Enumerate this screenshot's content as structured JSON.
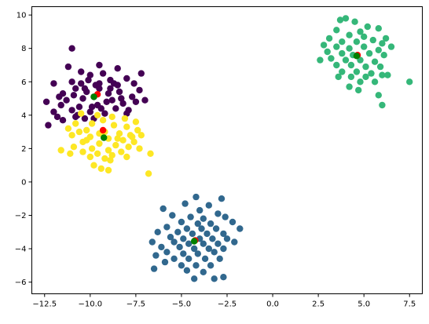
{
  "chart_data": {
    "type": "scatter",
    "title": "",
    "xlabel": "",
    "ylabel": "",
    "xlim": [
      -13.2,
      8.2
    ],
    "ylim": [
      -6.7,
      10.5
    ],
    "xticks": [
      -12.5,
      -10.0,
      -7.5,
      -5.0,
      -2.5,
      0.0,
      2.5,
      5.0,
      7.5
    ],
    "xtick_labels": [
      "−12.5",
      "−10.0",
      "−7.5",
      "−5.0",
      "−2.5",
      "0.0",
      "2.5",
      "5.0",
      "7.5"
    ],
    "yticks": [
      -6,
      -4,
      -2,
      0,
      2,
      4,
      6,
      8,
      10
    ],
    "ytick_labels": [
      "−6",
      "−4",
      "−2",
      "0",
      "2",
      "4",
      "6",
      "8",
      "10"
    ],
    "grid": false,
    "legend": "none",
    "series": [
      {
        "color": "#440154",
        "points": [
          [
            -11.0,
            8.0
          ],
          [
            -9.5,
            7.0
          ],
          [
            -8.5,
            6.8
          ],
          [
            -7.2,
            6.5
          ],
          [
            -10.5,
            6.6
          ],
          [
            -11.2,
            6.9
          ],
          [
            -8.0,
            6.2
          ],
          [
            -10.0,
            6.4
          ],
          [
            -9.3,
            6.5
          ],
          [
            -11.0,
            6.0
          ],
          [
            -12.0,
            5.9
          ],
          [
            -10.5,
            5.9
          ],
          [
            -9.7,
            5.8
          ],
          [
            -8.7,
            5.9
          ],
          [
            -7.6,
            5.9
          ],
          [
            -7.3,
            5.5
          ],
          [
            -10.8,
            5.6
          ],
          [
            -9.5,
            5.6
          ],
          [
            -8.9,
            5.6
          ],
          [
            -11.5,
            5.3
          ],
          [
            -10.2,
            5.4
          ],
          [
            -9.0,
            5.3
          ],
          [
            -8.4,
            5.4
          ],
          [
            -7.7,
            5.1
          ],
          [
            -12.4,
            4.8
          ],
          [
            -11.3,
            4.9
          ],
          [
            -10.4,
            5.0
          ],
          [
            -9.8,
            5.1
          ],
          [
            -8.8,
            4.9
          ],
          [
            -8.2,
            4.7
          ],
          [
            -7.5,
            4.8
          ],
          [
            -11.6,
            4.6
          ],
          [
            -10.6,
            4.5
          ],
          [
            -9.6,
            4.6
          ],
          [
            -8.6,
            4.4
          ],
          [
            -7.9,
            4.3
          ],
          [
            -12.0,
            4.2
          ],
          [
            -11.0,
            4.3
          ],
          [
            -10.0,
            4.2
          ],
          [
            -9.2,
            4.1
          ],
          [
            -8.0,
            4.1
          ],
          [
            -11.8,
            3.9
          ],
          [
            -10.8,
            3.9
          ],
          [
            -9.8,
            3.8
          ],
          [
            -12.3,
            3.4
          ],
          [
            -11.5,
            3.7
          ],
          [
            -10.3,
            3.8
          ],
          [
            -9.5,
            5.9
          ],
          [
            -10.1,
            6.1
          ],
          [
            -8.3,
            5.0
          ],
          [
            -9.9,
            4.5
          ],
          [
            -10.9,
            5.2
          ],
          [
            -9.1,
            4.8
          ],
          [
            -8.5,
            5.8
          ],
          [
            -7.0,
            4.9
          ],
          [
            -11.7,
            5.1
          ],
          [
            -10.7,
            4.0
          ],
          [
            -9.4,
            4.4
          ],
          [
            -8.9,
            6.1
          ],
          [
            -10.3,
            5.6
          ]
        ]
      },
      {
        "color": "#fde725",
        "points": [
          [
            -10.5,
            4.1
          ],
          [
            -9.6,
            4.0
          ],
          [
            -8.8,
            3.9
          ],
          [
            -8.1,
            3.8
          ],
          [
            -7.5,
            3.6
          ],
          [
            -10.8,
            3.5
          ],
          [
            -9.9,
            3.5
          ],
          [
            -8.7,
            3.4
          ],
          [
            -8.0,
            3.3
          ],
          [
            -7.4,
            3.1
          ],
          [
            -11.2,
            3.2
          ],
          [
            -10.2,
            3.1
          ],
          [
            -9.2,
            3.0
          ],
          [
            -8.4,
            2.9
          ],
          [
            -7.8,
            2.8
          ],
          [
            -11.0,
            2.8
          ],
          [
            -10.0,
            2.7
          ],
          [
            -9.0,
            2.6
          ],
          [
            -8.2,
            2.5
          ],
          [
            -7.6,
            2.4
          ],
          [
            -10.4,
            2.4
          ],
          [
            -9.5,
            2.3
          ],
          [
            -8.6,
            2.2
          ],
          [
            -7.9,
            2.1
          ],
          [
            -10.9,
            2.1
          ],
          [
            -9.9,
            2.0
          ],
          [
            -9.0,
            1.9
          ],
          [
            -8.3,
            1.8
          ],
          [
            -7.3,
            2.0
          ],
          [
            -11.6,
            1.9
          ],
          [
            -10.4,
            1.8
          ],
          [
            -9.6,
            1.7
          ],
          [
            -8.8,
            1.6
          ],
          [
            -8.0,
            1.5
          ],
          [
            -11.1,
            1.7
          ],
          [
            -10.0,
            1.5
          ],
          [
            -9.2,
            1.4
          ],
          [
            -9.8,
            1.0
          ],
          [
            -9.4,
            0.8
          ],
          [
            -9.0,
            0.7
          ],
          [
            -6.7,
            1.7
          ],
          [
            -6.8,
            0.5
          ],
          [
            -7.2,
            2.8
          ],
          [
            -10.6,
            3.0
          ],
          [
            -9.5,
            2.9
          ],
          [
            -8.5,
            2.6
          ],
          [
            -9.3,
            3.7
          ],
          [
            -10.2,
            2.5
          ],
          [
            -8.9,
            1.3
          ],
          [
            -7.7,
            2.7
          ]
        ]
      },
      {
        "color": "#31688e",
        "points": [
          [
            -4.2,
            -0.9
          ],
          [
            -2.8,
            -1.0
          ],
          [
            -4.8,
            -1.3
          ],
          [
            -3.5,
            -1.4
          ],
          [
            -6.0,
            -1.6
          ],
          [
            -4.0,
            -1.7
          ],
          [
            -3.0,
            -1.9
          ],
          [
            -5.5,
            -2.0
          ],
          [
            -4.5,
            -2.1
          ],
          [
            -3.8,
            -2.2
          ],
          [
            -2.6,
            -2.1
          ],
          [
            -5.0,
            -2.4
          ],
          [
            -4.1,
            -2.5
          ],
          [
            -3.4,
            -2.5
          ],
          [
            -2.2,
            -2.4
          ],
          [
            -5.8,
            -2.7
          ],
          [
            -4.7,
            -2.8
          ],
          [
            -3.9,
            -2.8
          ],
          [
            -3.1,
            -2.8
          ],
          [
            -1.8,
            -2.8
          ],
          [
            -6.3,
            -3.0
          ],
          [
            -5.2,
            -3.0
          ],
          [
            -4.4,
            -3.1
          ],
          [
            -3.6,
            -3.1
          ],
          [
            -2.7,
            -3.1
          ],
          [
            -5.6,
            -3.3
          ],
          [
            -4.9,
            -3.4
          ],
          [
            -4.0,
            -3.4
          ],
          [
            -3.3,
            -3.4
          ],
          [
            -2.5,
            -3.4
          ],
          [
            -6.6,
            -3.6
          ],
          [
            -5.4,
            -3.6
          ],
          [
            -4.6,
            -3.7
          ],
          [
            -3.8,
            -3.7
          ],
          [
            -3.0,
            -3.7
          ],
          [
            -2.1,
            -3.6
          ],
          [
            -6.1,
            -3.9
          ],
          [
            -5.1,
            -3.9
          ],
          [
            -4.3,
            -4.0
          ],
          [
            -3.5,
            -4.0
          ],
          [
            -2.7,
            -4.0
          ],
          [
            -5.8,
            -4.2
          ],
          [
            -4.9,
            -4.3
          ],
          [
            -4.1,
            -4.3
          ],
          [
            -3.2,
            -4.2
          ],
          [
            -6.4,
            -4.4
          ],
          [
            -5.4,
            -4.6
          ],
          [
            -4.6,
            -4.6
          ],
          [
            -3.7,
            -4.6
          ],
          [
            -2.9,
            -4.6
          ],
          [
            -5.9,
            -4.8
          ],
          [
            -5.0,
            -5.0
          ],
          [
            -4.2,
            -5.0
          ],
          [
            -3.4,
            -5.0
          ],
          [
            -6.5,
            -5.2
          ],
          [
            -4.7,
            -5.3
          ],
          [
            -3.8,
            -5.4
          ],
          [
            -4.3,
            -5.8
          ],
          [
            -3.2,
            -5.8
          ],
          [
            -2.7,
            -5.7
          ]
        ]
      },
      {
        "color": "#35b779",
        "points": [
          [
            3.7,
            9.7
          ],
          [
            4.0,
            9.8
          ],
          [
            4.5,
            9.6
          ],
          [
            5.2,
            9.3
          ],
          [
            3.5,
            9.1
          ],
          [
            4.8,
            9.0
          ],
          [
            5.8,
            9.2
          ],
          [
            4.2,
            8.8
          ],
          [
            5.0,
            8.7
          ],
          [
            6.2,
            8.6
          ],
          [
            3.1,
            8.6
          ],
          [
            3.8,
            8.4
          ],
          [
            4.6,
            8.4
          ],
          [
            5.5,
            8.5
          ],
          [
            6.0,
            8.3
          ],
          [
            2.8,
            8.2
          ],
          [
            3.5,
            8.1
          ],
          [
            4.2,
            8.0
          ],
          [
            5.0,
            8.1
          ],
          [
            5.8,
            7.9
          ],
          [
            6.5,
            8.1
          ],
          [
            3.0,
            7.8
          ],
          [
            3.8,
            7.7
          ],
          [
            4.4,
            7.6
          ],
          [
            5.3,
            7.7
          ],
          [
            6.1,
            7.6
          ],
          [
            2.6,
            7.3
          ],
          [
            3.2,
            7.4
          ],
          [
            4.0,
            7.3
          ],
          [
            4.8,
            7.3
          ],
          [
            5.6,
            7.2
          ],
          [
            3.5,
            7.0
          ],
          [
            4.3,
            7.0
          ],
          [
            5.1,
            6.9
          ],
          [
            5.9,
            6.9
          ],
          [
            3.8,
            6.6
          ],
          [
            4.6,
            6.6
          ],
          [
            5.4,
            6.5
          ],
          [
            6.0,
            6.4
          ],
          [
            3.6,
            6.3
          ],
          [
            4.3,
            6.3
          ],
          [
            5.1,
            6.3
          ],
          [
            4.8,
            6.0
          ],
          [
            5.6,
            6.0
          ],
          [
            4.2,
            5.7
          ],
          [
            4.7,
            5.5
          ],
          [
            5.8,
            5.2
          ],
          [
            6.0,
            4.6
          ],
          [
            7.5,
            6.0
          ],
          [
            6.3,
            6.4
          ]
        ]
      },
      {
        "color": "#ff0000",
        "points": [
          [
            -9.6,
            5.25
          ],
          [
            -9.3,
            3.1
          ],
          [
            -4.25,
            -3.5
          ],
          [
            4.65,
            7.6
          ]
        ]
      },
      {
        "color": "#008000",
        "points": [
          [
            -9.8,
            5.1
          ],
          [
            -9.25,
            2.65
          ],
          [
            -4.3,
            -3.55
          ],
          [
            4.6,
            7.55
          ]
        ]
      }
    ]
  }
}
